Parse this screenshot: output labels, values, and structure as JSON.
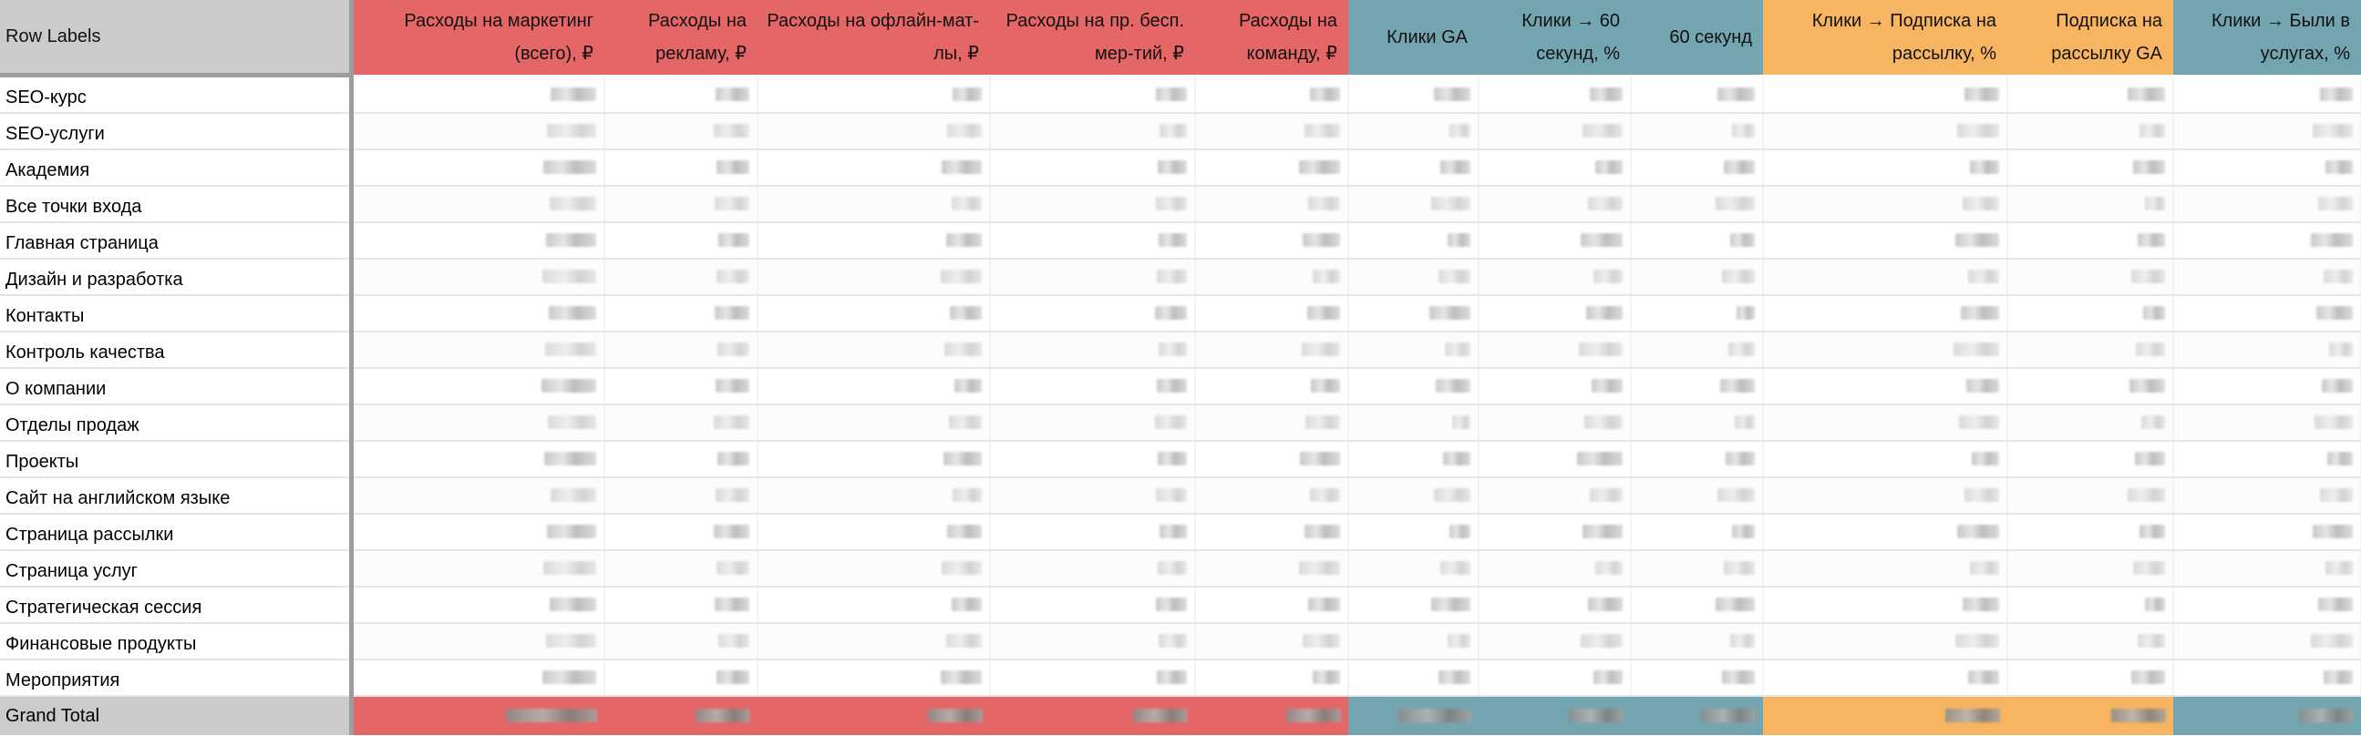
{
  "table": {
    "row_labels_header": "Row Labels",
    "columns": [
      {
        "label": "Расходы на маркетинг (всего), ₽",
        "group": "red"
      },
      {
        "label": "Расходы на рекламу, ₽",
        "group": "red"
      },
      {
        "label": "Расходы на офлайн-мат-лы, ₽",
        "group": "red"
      },
      {
        "label": "Расходы на пр. бесп. мер-тий, ₽",
        "group": "red"
      },
      {
        "label": "Расходы на команду, ₽",
        "group": "red"
      },
      {
        "label": "Клики GA",
        "group": "teal"
      },
      {
        "label": "Клики → 60 секунд, %",
        "group": "teal"
      },
      {
        "label": "60 секунд",
        "group": "teal"
      },
      {
        "label": "Клики → Подписка на рассылку, %",
        "group": "orange"
      },
      {
        "label": "Подписка на рассылку GA",
        "group": "orange"
      },
      {
        "label": "Клики → Были в услугах, %",
        "group": "teal"
      }
    ],
    "rows": [
      "SEO-курс",
      "SEO-услуги",
      "Академия",
      "Все точки входа",
      "Главная страница",
      "Дизайн и разработка",
      "Контакты",
      "Контроль качества",
      "О компании",
      "Отделы продаж",
      "Проекты",
      "Сайт на английском языке",
      "Страница рассылки",
      "Страница услуг",
      "Стратегическая сессия",
      "Финансовые продукты",
      "Мероприятия"
    ],
    "grand_total_label": "Grand Total"
  },
  "colors": {
    "red": "#e56666",
    "teal": "#73a5b0",
    "orange": "#f7b461",
    "row_label_header_bg": "#cbcbcb"
  },
  "note_values": "All numeric cell values are blurred/redacted in the screenshot"
}
